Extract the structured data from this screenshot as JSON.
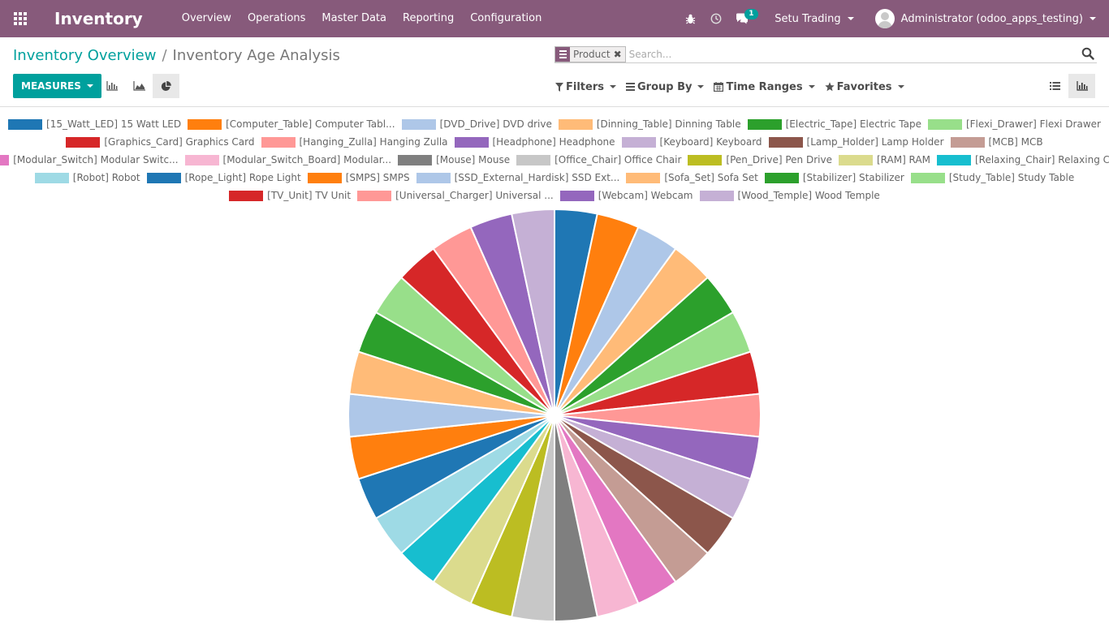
{
  "navbar": {
    "brand": "Inventory",
    "menu": [
      "Overview",
      "Operations",
      "Master Data",
      "Reporting",
      "Configuration"
    ],
    "chat_badge": "1",
    "company": "Setu Trading",
    "user": "Administrator (odoo_apps_testing)"
  },
  "breadcrumb": {
    "parent": "Inventory Overview",
    "separator": "/",
    "current": "Inventory Age Analysis"
  },
  "search": {
    "facet": "Product",
    "placeholder": "Search..."
  },
  "controls": {
    "measures": "MEASURES",
    "filters": "Filters",
    "group_by": "Group By",
    "time_ranges": "Time Ranges",
    "favorites": "Favorites"
  },
  "colors": {
    "navbar": "#875a7b",
    "accent": "#00a09d"
  },
  "chart_data": {
    "type": "pie",
    "categories": [
      "[15_Watt_LED] 15 Watt LED",
      "[Computer_Table] Computer Tabl...",
      "[DVD_Drive] DVD drive",
      "[Dinning_Table] Dinning Table",
      "[Electric_Tape] Electric Tape",
      "[Flexi_Drawer] Flexi Drawer",
      "[Graphics_Card] Graphics Card",
      "[Hanging_Zulla] Hanging Zulla",
      "[Headphone] Headphone",
      "[Keyboard] Keyboard",
      "[Lamp_Holder] Lamp Holder",
      "[MCB] MCB",
      "[Modular_Switch] Modular Switc...",
      "[Modular_Switch_Board] Modular...",
      "[Mouse] Mouse",
      "[Office_Chair] Office Chair",
      "[Pen_Drive] Pen Drive",
      "[RAM] RAM",
      "[Relaxing_Chair] Relaxing Chai...",
      "[Robot] Robot",
      "[Rope_Light] Rope Light",
      "[SMPS] SMPS",
      "[SSD_External_Hardisk] SSD Ext...",
      "[Sofa_Set] Sofa Set",
      "[Stabilizer] Stabilizer",
      "[Study_Table] Study Table",
      "[TV_Unit] TV Unit",
      "[Universal_Charger] Universal ...",
      "[Webcam] Webcam",
      "[Wood_Temple] Wood Temple"
    ],
    "values": [
      1,
      1,
      1,
      1,
      1,
      1,
      1,
      1,
      1,
      1,
      1,
      1,
      1,
      1,
      1,
      1,
      1,
      1,
      1,
      1,
      1,
      1,
      1,
      1,
      1,
      1,
      1,
      1,
      1,
      1
    ],
    "colors": [
      "#1f77b4",
      "#ff7f0e",
      "#aec7e8",
      "#ffbb78",
      "#2ca02c",
      "#98df8a",
      "#d62728",
      "#ff9896",
      "#9467bd",
      "#c5b0d5",
      "#8c564b",
      "#c49c94",
      "#e377c2",
      "#f7b6d2",
      "#7f7f7f",
      "#c7c7c7",
      "#bcbd22",
      "#dbdb8d",
      "#17becf",
      "#9edae5",
      "#1f77b4",
      "#ff7f0e",
      "#aec7e8",
      "#ffbb78",
      "#2ca02c",
      "#98df8a",
      "#d62728",
      "#ff9896",
      "#9467bd",
      "#c5b0d5"
    ],
    "legend_position": "top",
    "start_angle": "top, clockwise"
  }
}
